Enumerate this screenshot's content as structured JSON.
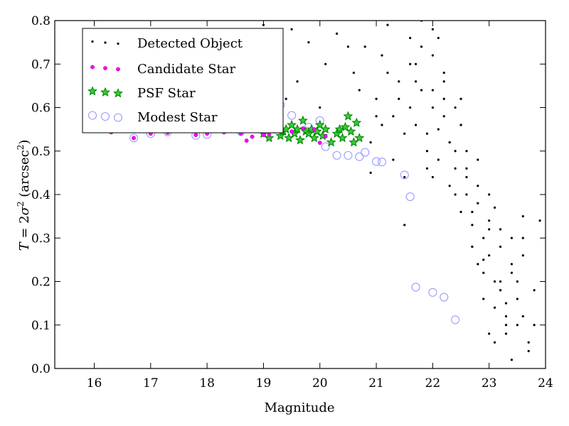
{
  "chart_data": {
    "type": "scatter",
    "title": "",
    "xlabel": "Magnitude",
    "ylabel": "T = 2σ² (arcsec²)",
    "xlim": [
      15.3,
      24.0
    ],
    "ylim": [
      0.0,
      0.8
    ],
    "x_ticks": [
      "16",
      "17",
      "18",
      "19",
      "20",
      "21",
      "22",
      "23",
      "24"
    ],
    "y_ticks": [
      "0.0",
      "0.1",
      "0.2",
      "0.3",
      "0.4",
      "0.5",
      "0.6",
      "0.7",
      "0.8"
    ],
    "grid": false,
    "legend_position": "top-left",
    "colors": {
      "detected": "#000000",
      "candidate": "#ff00ff",
      "psf": "#008000",
      "modest": "#9a9aff"
    },
    "series": [
      {
        "name": "Detected Object",
        "marker": "dot",
        "x": [
          19.0,
          19.2,
          19.4,
          19.5,
          19.6,
          19.8,
          20.0,
          20.1,
          20.3,
          20.6,
          20.8,
          20.9,
          21.0,
          21.1,
          21.2,
          21.3,
          21.4,
          21.5,
          21.6,
          21.7,
          21.8,
          21.9,
          22.0,
          22.0,
          22.1,
          22.2,
          22.3,
          22.4,
          22.5,
          22.6,
          22.7,
          22.8,
          22.9,
          23.0,
          23.1,
          23.2,
          23.3,
          23.4,
          23.5,
          23.6,
          23.7,
          23.8,
          21.5,
          21.7,
          22.0,
          22.2,
          22.4,
          22.6,
          22.8,
          23.0,
          23.2,
          23.4,
          21.6,
          21.9,
          22.1,
          22.3,
          22.5,
          22.7,
          22.9,
          23.1,
          23.3,
          20.9,
          21.1,
          21.3,
          21.6,
          22.0,
          22.4,
          22.8,
          23.2,
          23.6,
          21.8,
          22.2,
          22.6,
          23.0,
          23.4,
          21.4,
          21.9,
          22.3,
          22.7,
          23.1,
          23.5,
          20.5,
          20.7,
          21.2,
          21.7,
          22.1,
          22.5,
          22.9,
          23.3,
          23.7,
          21.0,
          21.5,
          22.0,
          22.6,
          23.0,
          23.5,
          22.2,
          22.8,
          23.2,
          23.6,
          21.8,
          22.4,
          23.0,
          23.4,
          22.9,
          23.3,
          23.6,
          22.5,
          22.7,
          23.1,
          23.8,
          23.9
        ],
        "y": [
          0.79,
          0.76,
          0.62,
          0.78,
          0.66,
          0.75,
          0.6,
          0.7,
          0.77,
          0.68,
          0.74,
          0.45,
          0.62,
          0.72,
          0.79,
          0.58,
          0.66,
          0.54,
          0.76,
          0.7,
          0.64,
          0.5,
          0.78,
          0.6,
          0.55,
          0.68,
          0.52,
          0.46,
          0.62,
          0.4,
          0.36,
          0.48,
          0.3,
          0.26,
          0.2,
          0.32,
          0.15,
          0.24,
          0.1,
          0.35,
          0.06,
          0.18,
          0.44,
          0.66,
          0.72,
          0.58,
          0.5,
          0.44,
          0.38,
          0.34,
          0.28,
          0.22,
          0.6,
          0.54,
          0.48,
          0.42,
          0.56,
          0.33,
          0.25,
          0.37,
          0.12,
          0.52,
          0.56,
          0.48,
          0.7,
          0.64,
          0.6,
          0.42,
          0.18,
          0.26,
          0.74,
          0.66,
          0.5,
          0.4,
          0.3,
          0.62,
          0.46,
          0.52,
          0.28,
          0.14,
          0.2,
          0.74,
          0.64,
          0.68,
          0.56,
          0.76,
          0.36,
          0.22,
          0.08,
          0.04,
          0.58,
          0.33,
          0.44,
          0.46,
          0.32,
          0.16,
          0.62,
          0.24,
          0.2,
          0.12,
          0.8,
          0.4,
          0.08,
          0.02,
          0.16,
          0.1,
          0.3,
          0.56,
          0.28,
          0.06,
          0.1,
          0.34
        ]
      },
      {
        "name": "Candidate Star",
        "marker": "circle-small",
        "x": [
          16.3,
          16.7,
          17.0,
          17.3,
          17.6,
          17.8,
          18.0,
          18.3,
          18.6,
          18.7,
          18.8,
          19.0,
          19.1,
          19.3,
          19.5,
          19.7,
          19.9,
          20.0,
          20.1
        ],
        "y": [
          0.543,
          0.53,
          0.54,
          0.542,
          0.546,
          0.537,
          0.54,
          0.543,
          0.54,
          0.524,
          0.533,
          0.537,
          0.538,
          0.548,
          0.545,
          0.552,
          0.55,
          0.519,
          0.534
        ]
      },
      {
        "name": "PSF Star",
        "marker": "star",
        "x": [
          19.0,
          19.1,
          19.2,
          19.25,
          19.3,
          19.35,
          19.4,
          19.45,
          19.5,
          19.55,
          19.6,
          19.65,
          19.7,
          19.75,
          19.8,
          19.85,
          19.9,
          19.95,
          20.0,
          20.05,
          20.1,
          20.2,
          20.3,
          20.35,
          20.4,
          20.45,
          20.5,
          20.55,
          20.6,
          20.65,
          20.7
        ],
        "y": [
          0.54,
          0.53,
          0.55,
          0.56,
          0.535,
          0.545,
          0.55,
          0.53,
          0.56,
          0.54,
          0.55,
          0.525,
          0.57,
          0.545,
          0.54,
          0.55,
          0.53,
          0.545,
          0.56,
          0.535,
          0.55,
          0.52,
          0.54,
          0.55,
          0.53,
          0.555,
          0.58,
          0.545,
          0.52,
          0.565,
          0.53
        ]
      },
      {
        "name": "Modest Star",
        "marker": "circle-open",
        "x": [
          15.9,
          16.3,
          16.7,
          17.0,
          17.3,
          17.8,
          18.0,
          18.6,
          19.2,
          19.3,
          19.5,
          19.8,
          20.0,
          20.1,
          20.3,
          20.5,
          20.7,
          20.8,
          21.0,
          21.1,
          21.5,
          21.6,
          21.7,
          22.0,
          22.2,
          22.4
        ],
        "y": [
          0.578,
          0.573,
          0.53,
          0.54,
          0.544,
          0.536,
          0.538,
          0.545,
          0.55,
          0.606,
          0.582,
          0.555,
          0.57,
          0.51,
          0.49,
          0.49,
          0.487,
          0.497,
          0.476,
          0.475,
          0.445,
          0.395,
          0.187,
          0.175,
          0.164,
          0.112
        ]
      }
    ]
  }
}
